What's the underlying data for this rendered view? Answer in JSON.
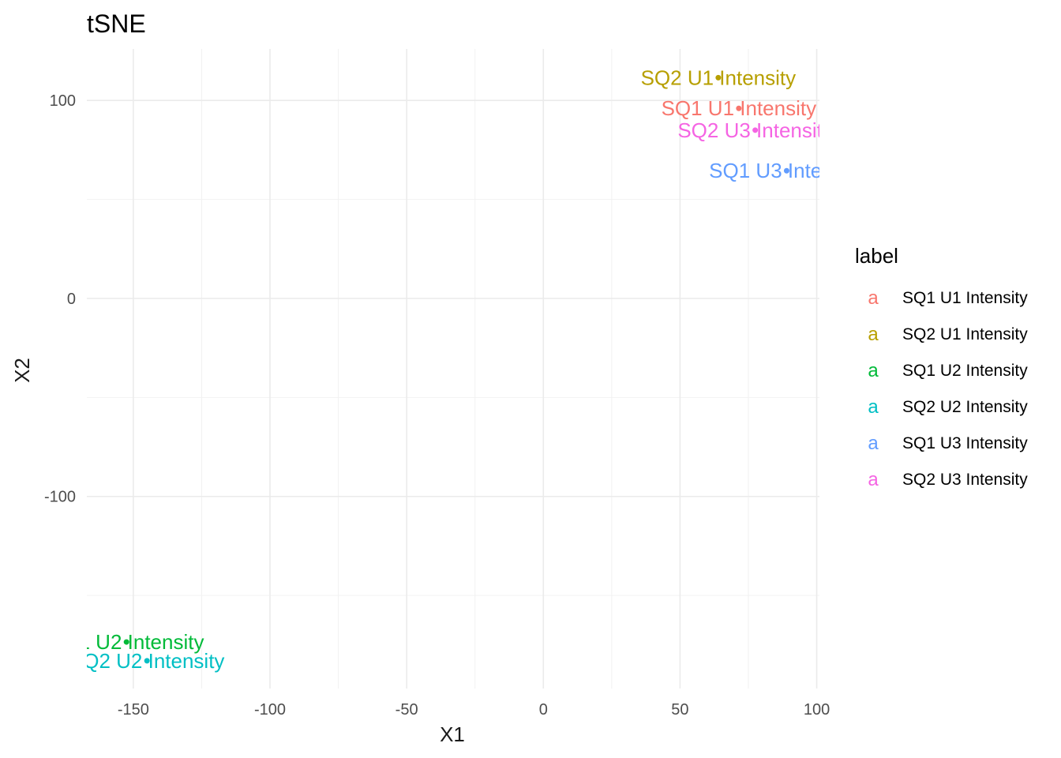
{
  "chart_data": {
    "type": "scatter",
    "title": "tSNE",
    "xlabel": "X1",
    "ylabel": "X2",
    "xlim": [
      -167,
      101
    ],
    "ylim": [
      -197,
      126
    ],
    "grid": true,
    "x_ticks": [
      -150,
      -100,
      -50,
      0,
      50,
      100
    ],
    "x_tick_labels": [
      "-150",
      "-100",
      "-50",
      "0",
      "50",
      "100"
    ],
    "y_ticks": [
      100,
      0,
      -100
    ],
    "y_tick_labels": [
      "100",
      "0",
      "-100"
    ],
    "legend_title": "label",
    "legend_key_glyph": "a",
    "legend_position": "right",
    "series": [
      {
        "name": "SQ1 U1 Intensity",
        "color": "#F8766D",
        "x": 71.5,
        "y": 96,
        "label": "SQ1 U1 Intensity"
      },
      {
        "name": "SQ2 U1 Intensity",
        "color": "#B79F00",
        "x": 64,
        "y": 111.5,
        "label": "SQ2 U1 Intensity"
      },
      {
        "name": "SQ1 U2 Intensity",
        "color": "#00BA38",
        "x": -152.5,
        "y": -173.5,
        "label": "SQ1 U2 Intensity"
      },
      {
        "name": "SQ2 U2 Intensity",
        "color": "#00BFC4",
        "x": -145,
        "y": -183,
        "label": "SQ2 U2 Intensity"
      },
      {
        "name": "SQ1 U3 Intensity",
        "color": "#619CFF",
        "x": 89,
        "y": 64.5,
        "label": "SQ1 U3 Intensity"
      },
      {
        "name": "SQ2 U3 Intensity",
        "color": "#F564E3",
        "x": 77.5,
        "y": 85,
        "label": "SQ2 U3 Intensity"
      }
    ]
  }
}
